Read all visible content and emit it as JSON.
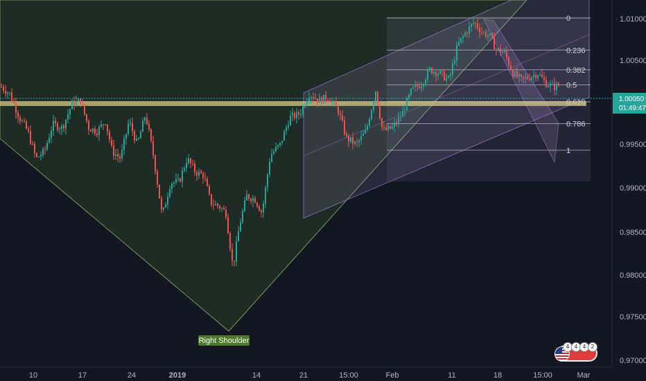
{
  "chart_data": {
    "type": "candlestick",
    "instrument_note": "",
    "y_range": [
      0.9695,
      1.0135
    ],
    "y_ticks": [
      "1.01000",
      "1.00500",
      "1.00050",
      "0.99500",
      "0.99000",
      "0.98500",
      "0.98000",
      "0.97500",
      "0.97000"
    ],
    "x_ticks": [
      "10",
      "17",
      "24",
      "2019",
      "14",
      "21",
      "15:00",
      "Feb",
      "11",
      "18",
      "15:00",
      "Mar"
    ],
    "current_price": "1.00050",
    "countdown": "01:49:47",
    "horizontal_level": 1.0005,
    "fib_levels": [
      {
        "label": "0",
        "price": 1.0101
      },
      {
        "label": "0.236",
        "price": 1.0054
      },
      {
        "label": "0.382",
        "price": 1.0025
      },
      {
        "label": "0.5",
        "price": 1.0003
      },
      {
        "label": "0.618",
        "price": 0.9978
      },
      {
        "label": "0.786",
        "price": 0.9946
      },
      {
        "label": "1",
        "price": 0.9907
      }
    ],
    "annotations": {
      "right_shoulder": "Right Shoulder"
    },
    "colors": {
      "up": "#26a69a",
      "down": "#ef5350",
      "fib": "#b2b5be",
      "channel": "#9575cd",
      "triangle": "#c5e1a5",
      "level": "#d4c98a"
    },
    "flag_counts": [
      "4",
      "4",
      "4",
      "2"
    ]
  }
}
